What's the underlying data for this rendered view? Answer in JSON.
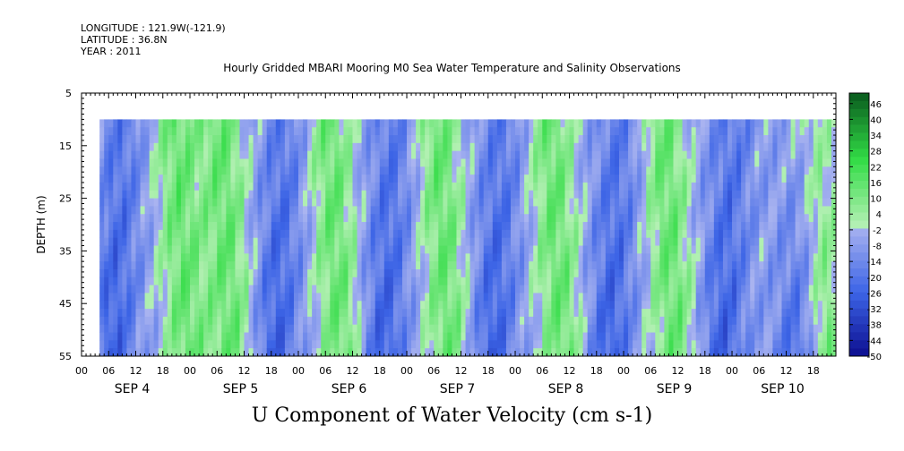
{
  "header": {
    "longitude": "LONGITUDE : 121.9W(-121.9)",
    "latitude": "LATITUDE : 36.8N",
    "year": "YEAR : 2011"
  },
  "chart_data": {
    "type": "heatmap",
    "title": "Hourly Gridded MBARI Mooring M0 Sea Water Temperature and Salinity Observations",
    "xlabel": "U Component of Water Velocity (cm s-1)",
    "ylabel": "DEPTH (m)",
    "ylim": [
      55,
      5
    ],
    "y_ticks": [
      5,
      15,
      25,
      35,
      45,
      55
    ],
    "x_range_hours": [
      0,
      167
    ],
    "data_start_hour": 4,
    "x_hour_labels": [
      "00",
      "06",
      "12",
      "18",
      "00",
      "06",
      "12",
      "18",
      "00",
      "06",
      "12",
      "18",
      "00",
      "06",
      "12",
      "18",
      "00",
      "06",
      "12",
      "18",
      "00",
      "06",
      "12",
      "18",
      "00",
      "06",
      "12",
      "18"
    ],
    "day_labels": [
      "SEP  4",
      "SEP  5",
      "SEP  6",
      "SEP  7",
      "SEP  8",
      "SEP  9",
      "SEP 10"
    ],
    "depth_levels_m": [
      10,
      15,
      20,
      25,
      30,
      35,
      40,
      45,
      50,
      55
    ],
    "colorbar_labels": [
      "46",
      "40",
      "34",
      "28",
      "22",
      "16",
      "10",
      "4",
      "-2",
      "-8",
      "-14",
      "-20",
      "-26",
      "-32",
      "-38",
      "-44",
      "-50"
    ],
    "colorbar_range": [
      -50,
      50
    ],
    "colorbar_step": 3,
    "colormap": {
      "negative_min": "#0a0a8c",
      "negative_mid": "#3c64e6",
      "negative_light": "#aab4f0",
      "positive_light": "#b4f0b4",
      "positive_mid": "#32dc46",
      "positive_max": "#0a5a1e"
    },
    "u_velocity_columns_hourly_surface_to_depth_pattern": {
      "positive_phases_hours": [
        22,
        32,
        56,
        80,
        105,
        130,
        163
      ],
      "negative_phases_hours": [
        8,
        44,
        68,
        92,
        118,
        143,
        160
      ]
    }
  }
}
